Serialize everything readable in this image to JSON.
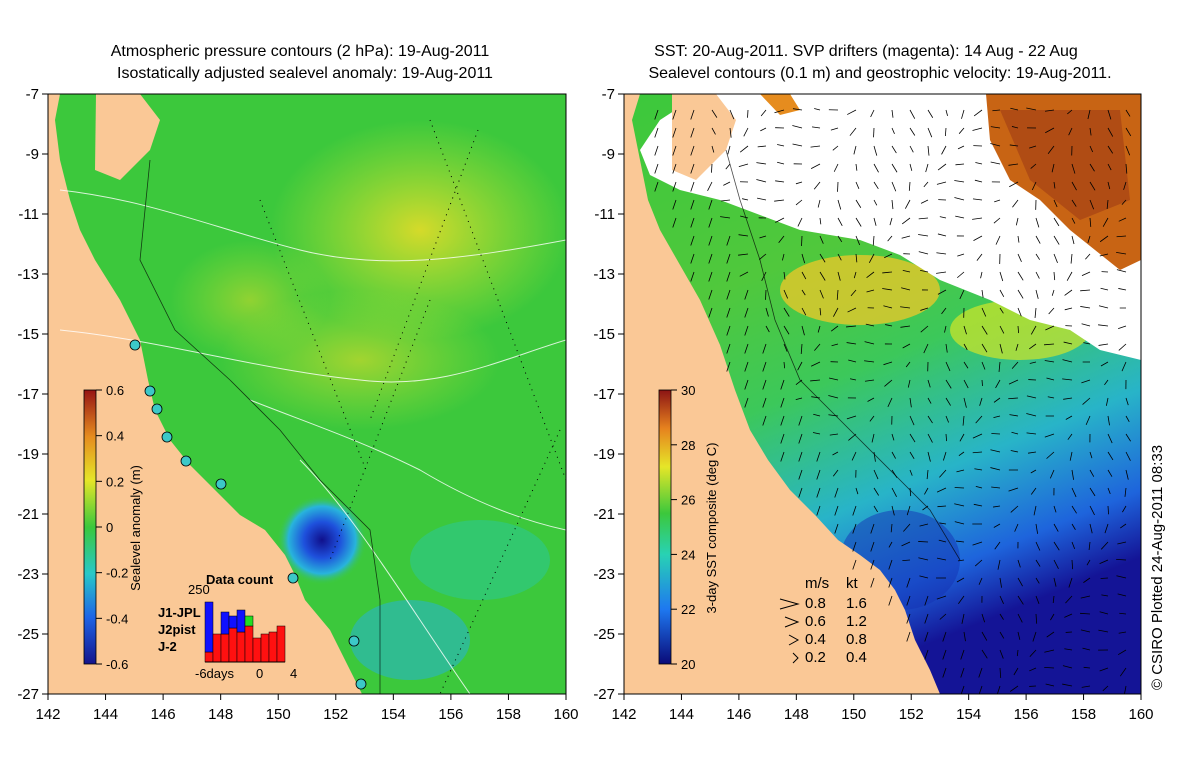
{
  "left_panel": {
    "title_line1": "Atmospheric pressure contours (2 hPa): 19-Aug-2011",
    "title_line2": "Isostatically adjusted sealevel anomaly: 19-Aug-2011",
    "colorbar": {
      "label": "Sealevel anomaly (m)",
      "ticks": [
        "0.6",
        "0.4",
        "0.2",
        "0",
        "-0.2",
        "-0.4",
        "-0.6"
      ]
    },
    "data_count": {
      "title": "Data count",
      "ymax_label": "250",
      "xlabels": [
        "-6days",
        "0",
        "4"
      ],
      "legend": [
        {
          "name": "J1-JPL",
          "color": "#1010ff"
        },
        {
          "name": "J2pist",
          "color": "#22dd22"
        },
        {
          "name": "J-2",
          "color": "#ff1010"
        }
      ]
    }
  },
  "right_panel": {
    "title_line1": "SST: 20-Aug-2011. SVP drifters (magenta): 14 Aug - 22 Aug",
    "title_line2": "Sealevel contours (0.1 m) and geostrophic velocity: 19-Aug-2011.",
    "colorbar": {
      "label": "3-day SST composite (deg C)",
      "ticks": [
        "30",
        "28",
        "26",
        "24",
        "22",
        "20"
      ]
    },
    "velocity_legend": {
      "header_ms": "m/s",
      "header_kt": "kt",
      "rows": [
        {
          "ms": "0.8",
          "kt": "1.6"
        },
        {
          "ms": "0.6",
          "kt": "1.2"
        },
        {
          "ms": "0.4",
          "kt": "0.8"
        },
        {
          "ms": "0.2",
          "kt": "0.4"
        }
      ]
    }
  },
  "axes": {
    "x_ticks": [
      "142",
      "144",
      "146",
      "148",
      "150",
      "152",
      "154",
      "156",
      "158",
      "160"
    ],
    "y_ticks": [
      "-7",
      "-9",
      "-11",
      "-13",
      "-15",
      "-17",
      "-19",
      "-21",
      "-23",
      "-25",
      "-27"
    ]
  },
  "credit": "© CSIRO Plotted 24-Aug-2011 08:33",
  "colors": {
    "land": "#fac896",
    "ocean_green": "#3cc83c",
    "ocean_yellow": "#d2e628",
    "low_blue": "#1432b4",
    "no_data": "#ffffff"
  }
}
